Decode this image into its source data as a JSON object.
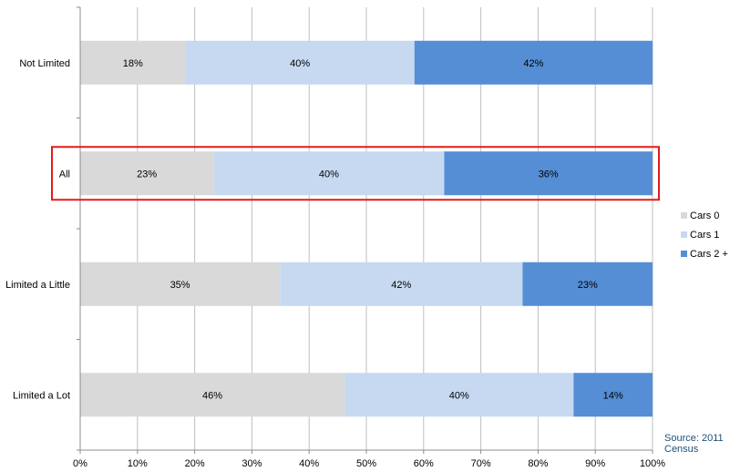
{
  "chart_data": {
    "type": "bar",
    "orientation": "horizontal",
    "stacked": "percent",
    "categories": [
      "Not Limited",
      "All",
      "Limited a Little",
      "Limited a Lot"
    ],
    "series": [
      {
        "name": "Cars 0",
        "color": "#d9d9d9",
        "values": [
          18.4,
          23.3,
          34.9,
          46.2
        ]
      },
      {
        "name": "Cars 1",
        "color": "#c6d9f1",
        "values": [
          40.0,
          40.3,
          42.4,
          40.0
        ]
      },
      {
        "name": "Cars 2 +",
        "color": "#558ed5",
        "values": [
          41.6,
          36.4,
          22.7,
          13.8
        ]
      }
    ],
    "data_labels": [
      [
        "18%",
        "40%",
        "42%"
      ],
      [
        "23%",
        "40%",
        "36%"
      ],
      [
        "35%",
        "42%",
        "23%"
      ],
      [
        "46%",
        "40%",
        "14%"
      ]
    ],
    "xlim": [
      0,
      100
    ],
    "x_ticks": [
      0,
      10,
      20,
      30,
      40,
      50,
      60,
      70,
      80,
      90,
      100
    ],
    "x_tick_labels": [
      "0%",
      "10%",
      "20%",
      "30%",
      "40%",
      "50%",
      "60%",
      "70%",
      "80%",
      "90%",
      "100%"
    ],
    "grid": true,
    "legend_position": "right",
    "highlighted_category": "All",
    "highlight_color": "#e31a1c"
  },
  "source": "Source: 2011 Census"
}
